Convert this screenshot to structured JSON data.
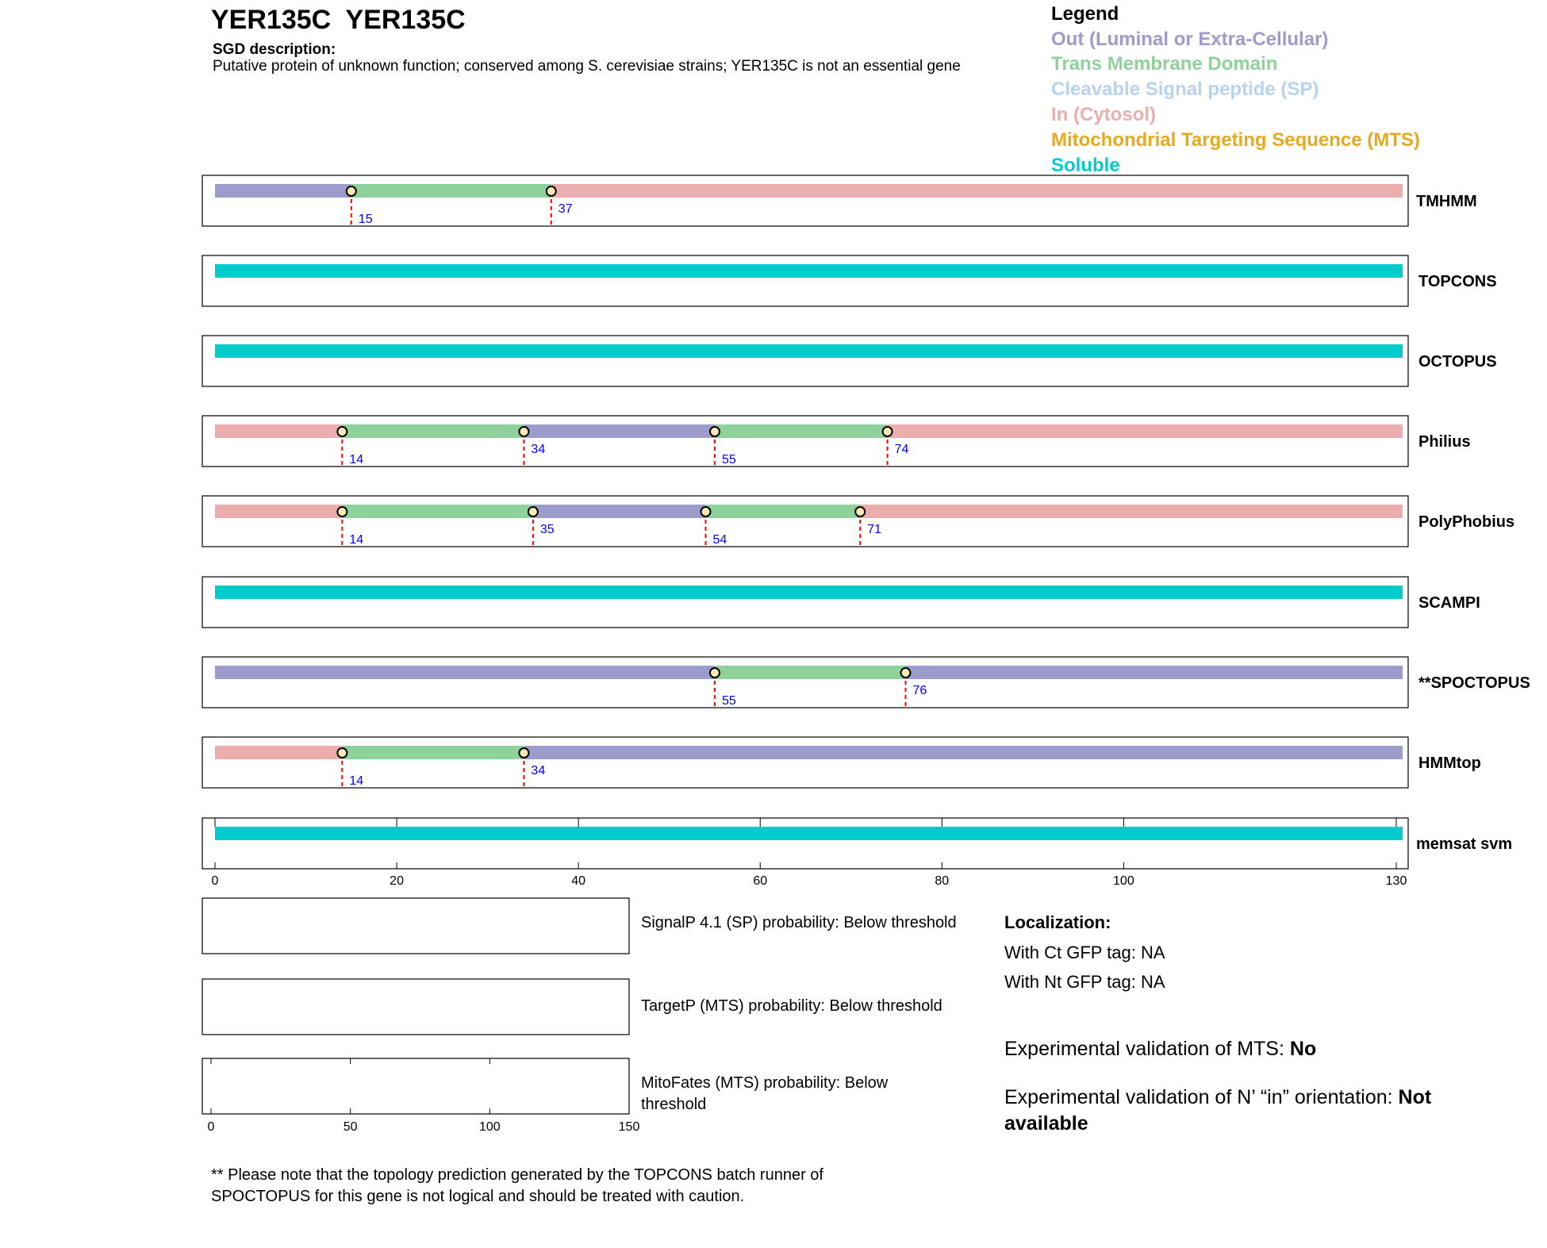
{
  "header": {
    "title": "YER135C  YER135C",
    "sgd_label": "SGD description:",
    "sgd_text": "Putative protein of unknown function; conserved among S. cerevisiae strains; YER135C is not an essential gene"
  },
  "legend": {
    "title": "Legend",
    "items": [
      {
        "label": "Out (Luminal or Extra-Cellular)",
        "color": "#9b9bcc"
      },
      {
        "label": "Trans Membrane Domain",
        "color": "#8fd19a"
      },
      {
        "label": "Cleavable Signal peptide (SP)",
        "color": "#b7d3ee"
      },
      {
        "label": "In (Cytosol)",
        "color": "#ebadad"
      },
      {
        "label": "Mitochondrial Targeting Sequence (MTS)",
        "color": "#e8aa1c"
      },
      {
        "label": "Soluble",
        "color": "#00cccc"
      }
    ]
  },
  "colors": {
    "out": "#9b9bcc",
    "tm": "#8fd19a",
    "in": "#ebadad",
    "soluble": "#00cccc",
    "marker_fill": "#fde9b4",
    "boundary_line": "#ff0000",
    "position_label": "#0000ff"
  },
  "chart_data": {
    "type": "topology-tracks",
    "protein_length": 131,
    "x_ticks": [
      0,
      20,
      40,
      60,
      80,
      100,
      130
    ],
    "tracks": [
      {
        "name": "TMHMM",
        "segments": [
          {
            "start": 0,
            "end": 15,
            "type": "out"
          },
          {
            "start": 15,
            "end": 37,
            "type": "tm"
          },
          {
            "start": 37,
            "end": 131,
            "type": "in"
          }
        ],
        "boundaries": [
          15,
          37
        ]
      },
      {
        "name": "TOPCONS",
        "segments": [
          {
            "start": 0,
            "end": 131,
            "type": "soluble"
          }
        ],
        "boundaries": []
      },
      {
        "name": "OCTOPUS",
        "segments": [
          {
            "start": 0,
            "end": 131,
            "type": "soluble"
          }
        ],
        "boundaries": []
      },
      {
        "name": "Philius",
        "segments": [
          {
            "start": 0,
            "end": 14,
            "type": "in"
          },
          {
            "start": 14,
            "end": 34,
            "type": "tm"
          },
          {
            "start": 34,
            "end": 55,
            "type": "out"
          },
          {
            "start": 55,
            "end": 74,
            "type": "tm"
          },
          {
            "start": 74,
            "end": 131,
            "type": "in"
          }
        ],
        "boundaries": [
          14,
          34,
          55,
          74
        ]
      },
      {
        "name": "PolyPhobius",
        "segments": [
          {
            "start": 0,
            "end": 14,
            "type": "in"
          },
          {
            "start": 14,
            "end": 35,
            "type": "tm"
          },
          {
            "start": 35,
            "end": 54,
            "type": "out"
          },
          {
            "start": 54,
            "end": 71,
            "type": "tm"
          },
          {
            "start": 71,
            "end": 131,
            "type": "in"
          }
        ],
        "boundaries": [
          14,
          35,
          54,
          71
        ]
      },
      {
        "name": "SCAMPI",
        "segments": [
          {
            "start": 0,
            "end": 131,
            "type": "soluble"
          }
        ],
        "boundaries": []
      },
      {
        "name": "**SPOCTOPUS",
        "segments": [
          {
            "start": 0,
            "end": 55,
            "type": "out"
          },
          {
            "start": 55,
            "end": 76,
            "type": "tm"
          },
          {
            "start": 76,
            "end": 131,
            "type": "out"
          }
        ],
        "boundaries": [
          55,
          76
        ]
      },
      {
        "name": "HMMtop",
        "segments": [
          {
            "start": 0,
            "end": 14,
            "type": "in"
          },
          {
            "start": 14,
            "end": 34,
            "type": "tm"
          },
          {
            "start": 34,
            "end": 131,
            "type": "out"
          }
        ],
        "boundaries": [
          14,
          34
        ]
      },
      {
        "name": "memsat svm",
        "segments": [
          {
            "start": 0,
            "end": 131,
            "type": "soluble"
          }
        ],
        "boundaries": []
      }
    ],
    "prob_axis": {
      "ticks": [
        0,
        50,
        100,
        150
      ],
      "max": 150
    }
  },
  "probabilities": {
    "signalp": "SignalP 4.1 (SP) probability: Below threshold",
    "targetp": "TargetP (MTS) probability: Below threshold",
    "mitofates": "MitoFates (MTS) probability: Below threshold"
  },
  "localization": {
    "title": "Localization:",
    "ct_gfp": "With Ct GFP tag: NA",
    "nt_gfp": "With Nt GFP tag: NA"
  },
  "validation": {
    "mts_label": "Experimental validation of MTS: ",
    "mts_value": "No",
    "nin_label": "Experimental validation of N’ “in” orientation: ",
    "nin_value": "Not available"
  },
  "footnote": "** Please note that the topology prediction generated by the TOPCONS batch runner of SPOCTOPUS for this gene is not logical and should be treated with caution."
}
